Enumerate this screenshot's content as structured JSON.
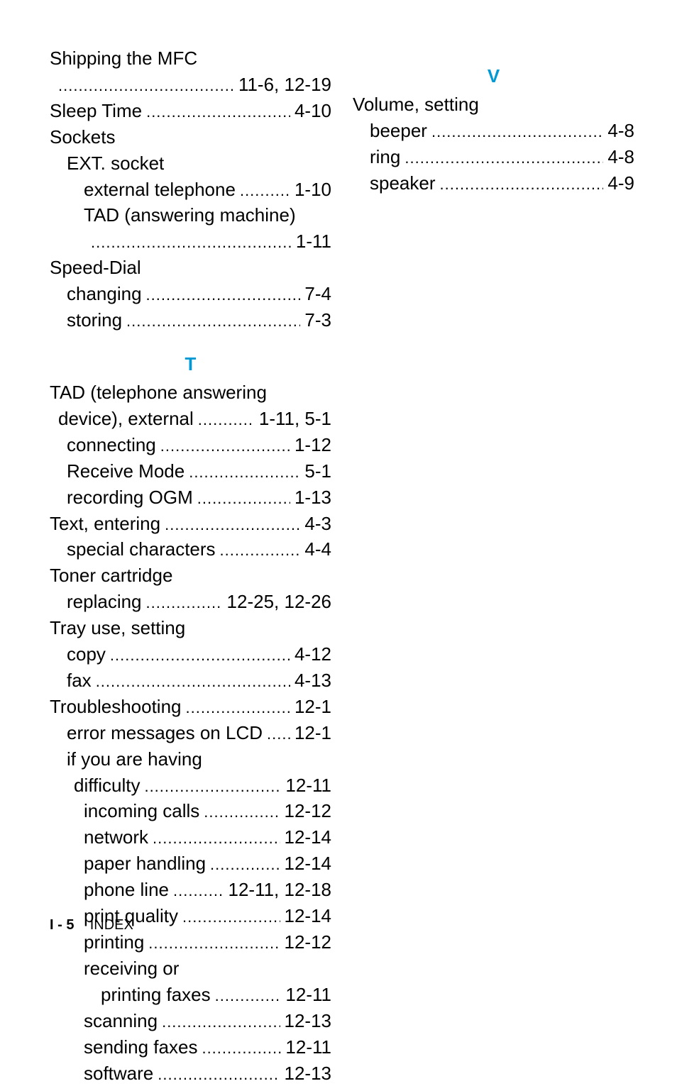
{
  "footer": {
    "page": "I - 5",
    "label": "INDEX"
  },
  "left": [
    {
      "level": 0,
      "label": "Shipping the MFC",
      "page": null
    },
    {
      "level": "0cont",
      "label": "",
      "page": "11-6, 12-19"
    },
    {
      "level": 0,
      "label": "Sleep Time",
      "page": "4-10"
    },
    {
      "level": 0,
      "label": "Sockets",
      "page": null
    },
    {
      "level": 1,
      "label": "EXT. socket",
      "page": null
    },
    {
      "level": 2,
      "label": "external telephone",
      "page": "1-10"
    },
    {
      "level": 2,
      "label": "TAD (answering machine)",
      "page": null
    },
    {
      "level": "2cont",
      "label": "",
      "page": "1-11"
    },
    {
      "level": 0,
      "label": "Speed-Dial",
      "page": null
    },
    {
      "level": 1,
      "label": "changing",
      "page": "7-4"
    },
    {
      "level": 1,
      "label": "storing",
      "page": "7-3"
    },
    {
      "section": "T"
    },
    {
      "level": 0,
      "label": "TAD (telephone answering",
      "page": null
    },
    {
      "level": "0cont",
      "label": "device), external",
      "page": "1-11, 5-1"
    },
    {
      "level": 1,
      "label": "connecting",
      "page": "1-12"
    },
    {
      "level": 1,
      "label": "Receive Mode",
      "page": "5-1"
    },
    {
      "level": 1,
      "label": "recording OGM",
      "page": "1-13"
    },
    {
      "level": 0,
      "label": "Text, entering",
      "page": "4-3"
    },
    {
      "level": 1,
      "label": "special characters",
      "page": "4-4"
    },
    {
      "level": 0,
      "label": "Toner cartridge",
      "page": null
    },
    {
      "level": 1,
      "label": "replacing",
      "page": "12-25, 12-26"
    },
    {
      "level": 0,
      "label": "Tray use, setting",
      "page": null
    },
    {
      "level": 1,
      "label": "copy",
      "page": "4-12"
    },
    {
      "level": 1,
      "label": "fax",
      "page": "4-13"
    },
    {
      "level": 0,
      "label": "Troubleshooting",
      "page": "12-1"
    },
    {
      "level": 1,
      "label": "error messages on LCD",
      "page": "12-1"
    },
    {
      "level": 1,
      "label": "if you are having",
      "page": null
    },
    {
      "level": "1cont",
      "label": "difficulty",
      "page": "12-11"
    },
    {
      "level": 2,
      "label": "incoming calls",
      "page": "12-12"
    },
    {
      "level": 2,
      "label": "network",
      "page": "12-14"
    },
    {
      "level": 2,
      "label": "paper handling",
      "page": "12-14"
    },
    {
      "level": 2,
      "label": "phone line",
      "page": "12-11, 12-18"
    },
    {
      "level": 2,
      "label": "print quality",
      "page": "12-14"
    },
    {
      "level": 2,
      "label": "printing",
      "page": "12-12"
    },
    {
      "level": 2,
      "label": "receiving or",
      "page": null
    },
    {
      "level": 3,
      "label": "printing faxes",
      "page": "12-11"
    },
    {
      "level": 2,
      "label": "scanning",
      "page": "12-13"
    },
    {
      "level": 2,
      "label": "sending faxes",
      "page": "12-11"
    },
    {
      "level": 2,
      "label": "software",
      "page": "12-13"
    }
  ],
  "right": [
    {
      "section": "V"
    },
    {
      "level": 0,
      "label": "Volume, setting",
      "page": null
    },
    {
      "level": 1,
      "label": "beeper",
      "page": "4-8"
    },
    {
      "level": 1,
      "label": "ring",
      "page": "4-8"
    },
    {
      "level": 1,
      "label": "speaker",
      "page": "4-9"
    }
  ]
}
